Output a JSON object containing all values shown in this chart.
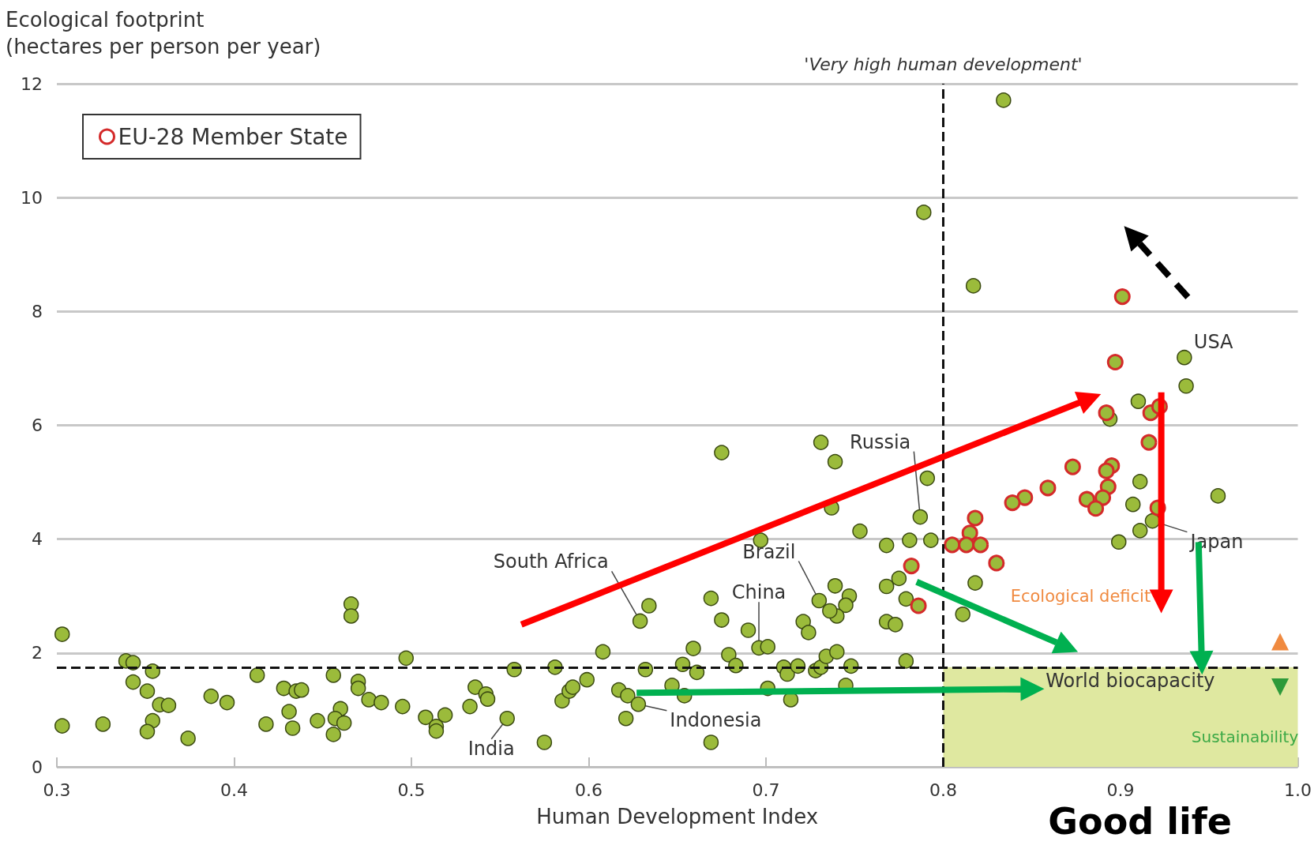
{
  "chart_data": {
    "type": "scatter",
    "xlabel": "Human Development Index",
    "ylabel": "Ecological footprint (hectares per person per year)",
    "xlim": [
      0.3,
      1.0
    ],
    "xticks": [
      0.3,
      0.4,
      0.5,
      0.6,
      0.7,
      0.8,
      0.9,
      {
        "value": 1.0,
        "label": "1.0"
      }
    ],
    "ylim": [
      0,
      12
    ],
    "yticks": [
      0,
      2,
      4,
      6,
      8,
      10,
      12
    ],
    "grid": "y",
    "legend": "top left",
    "marker": "circle",
    "series": [
      {
        "color": "#9bbb3b",
        "x": [
          0.303,
          0.303,
          0.326,
          0.339,
          0.343,
          0.354,
          0.343,
          0.351,
          0.358,
          0.363,
          0.354,
          0.351,
          0.374,
          0.387,
          0.396,
          0.413,
          0.418,
          0.428,
          0.435,
          0.438,
          0.431,
          0.433,
          0.447,
          0.456,
          0.46,
          0.457,
          0.462,
          0.456,
          0.466,
          0.466,
          0.47,
          0.47,
          0.476,
          0.483,
          0.497,
          0.495,
          0.508,
          0.514,
          0.514,
          0.519,
          0.533,
          0.536,
          0.542,
          0.543,
          0.554,
          0.558,
          0.575,
          0.581,
          0.585,
          0.589,
          0.591,
          0.599,
          0.608,
          0.617,
          0.622,
          0.621,
          0.628,
          0.629,
          0.634,
          0.632,
          0.647,
          0.654,
          0.653,
          0.661,
          0.659,
          0.669,
          0.669,
          0.675,
          0.675,
          0.679,
          0.683,
          0.69,
          0.696,
          0.701,
          0.697,
          0.701,
          0.71,
          0.712,
          0.718,
          0.714,
          0.721,
          0.724,
          0.728,
          0.731,
          0.731,
          0.73,
          0.734,
          0.74,
          0.739,
          0.747,
          0.745,
          0.74,
          0.736,
          0.739,
          0.737,
          0.745,
          0.748,
          0.753,
          0.768,
          0.768,
          0.773,
          0.768,
          0.775,
          0.779,
          0.779,
          0.781,
          0.787,
          0.791,
          0.793,
          0.789,
          0.811,
          0.818,
          0.817,
          0.834,
          0.899,
          0.894,
          0.907,
          0.911,
          0.91,
          0.911,
          0.918,
          0.936,
          0.937,
          0.955
        ],
        "values": [
          2.33,
          0.72,
          0.75,
          1.86,
          1.83,
          1.68,
          1.49,
          1.33,
          1.09,
          1.08,
          0.81,
          0.62,
          0.5,
          1.24,
          1.13,
          1.61,
          0.75,
          1.38,
          1.33,
          1.35,
          0.97,
          0.68,
          0.81,
          1.61,
          1.02,
          0.85,
          0.77,
          0.57,
          2.86,
          2.65,
          1.5,
          1.38,
          1.18,
          1.13,
          1.91,
          1.06,
          0.87,
          0.71,
          0.63,
          0.91,
          1.06,
          1.4,
          1.28,
          1.19,
          0.85,
          1.71,
          0.43,
          1.75,
          1.16,
          1.33,
          1.4,
          1.53,
          2.02,
          1.35,
          1.25,
          0.85,
          1.1,
          2.56,
          2.83,
          1.71,
          1.43,
          1.25,
          1.8,
          1.66,
          2.08,
          0.43,
          2.96,
          2.58,
          5.52,
          1.97,
          1.78,
          2.4,
          2.09,
          2.11,
          3.98,
          1.38,
          1.75,
          1.63,
          1.77,
          1.18,
          2.55,
          2.36,
          1.69,
          1.75,
          5.7,
          2.92,
          1.94,
          2.02,
          3.18,
          3.0,
          2.84,
          2.65,
          2.74,
          5.36,
          4.55,
          1.43,
          1.77,
          4.14,
          3.89,
          2.55,
          2.5,
          3.17,
          3.31,
          2.95,
          1.86,
          3.98,
          4.39,
          5.07,
          3.98,
          9.74,
          2.68,
          3.23,
          8.45,
          11.71,
          3.95,
          6.11,
          4.61,
          5.01,
          6.42,
          4.15,
          4.32,
          7.19,
          6.69,
          4.76
        ]
      },
      {
        "name": "EU-28 Member State",
        "color": "#d42a2a",
        "x": [
          0.901,
          0.897,
          0.892,
          0.917,
          0.922,
          0.916,
          0.921,
          0.873,
          0.895,
          0.892,
          0.893,
          0.859,
          0.846,
          0.839,
          0.881,
          0.89,
          0.886,
          0.818,
          0.815,
          0.805,
          0.813,
          0.821,
          0.83,
          0.782,
          0.786
        ],
        "values": [
          8.26,
          7.11,
          6.22,
          6.22,
          6.33,
          5.7,
          4.55,
          5.27,
          5.29,
          5.2,
          4.92,
          4.9,
          4.73,
          4.64,
          4.7,
          4.73,
          4.54,
          4.37,
          4.11,
          3.9,
          3.9,
          3.9,
          3.58,
          3.53,
          2.83
        ]
      }
    ],
    "ref_lines": [
      {
        "axis": "x",
        "value": 0.8,
        "label": "'Very high human development'",
        "line_style": "dashed",
        "color": "#111111"
      },
      {
        "axis": "y",
        "value": 1.75,
        "label": "World biocapacity",
        "line_style": "dashed",
        "color": "#111111"
      }
    ],
    "bands": [
      {
        "axis": "y",
        "from": 0,
        "to": 1.75,
        "label": "Sustainability",
        "color": "#dfe8a0"
      }
    ],
    "annotations": [
      {
        "text": "USA",
        "x": 0.936,
        "y": 7.19
      },
      {
        "text": "Japan",
        "x": 0.918,
        "y": 4.32
      },
      {
        "text": "Russia",
        "x": 0.787,
        "y": 4.39
      },
      {
        "text": "Brazil",
        "x": 0.73,
        "y": 2.92
      },
      {
        "text": "China",
        "x": 0.696,
        "y": 2.09
      },
      {
        "text": "South Africa",
        "x": 0.629,
        "y": 2.56
      },
      {
        "text": "India",
        "x": 0.554,
        "y": 0.85
      },
      {
        "text": "Indonesia",
        "x": 0.628,
        "y": 1.1
      },
      "Ecological deficit",
      "Good life"
    ]
  }
}
